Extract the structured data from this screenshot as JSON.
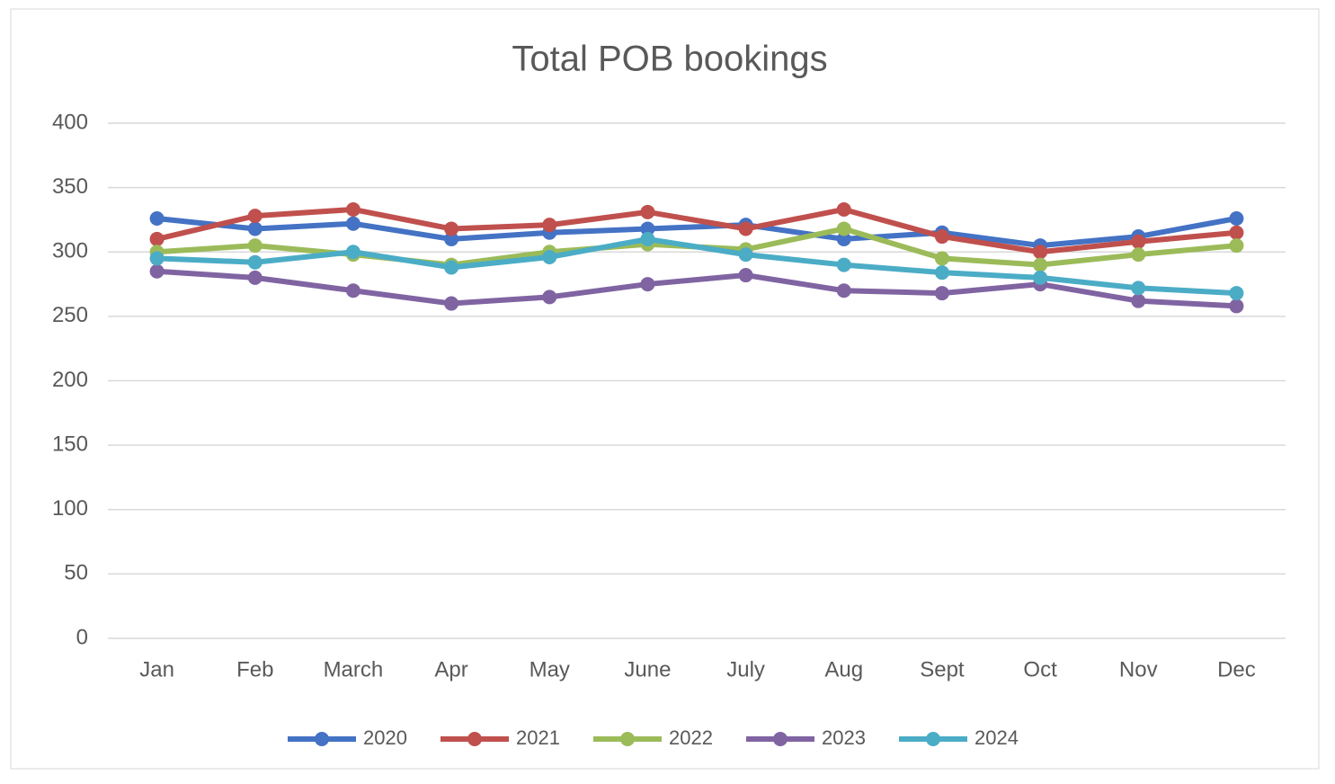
{
  "chart_data": {
    "type": "line",
    "title": "Total POB bookings",
    "categories": [
      "Jan",
      "Feb",
      "March",
      "Apr",
      "May",
      "June",
      "July",
      "Aug",
      "Sept",
      "Oct",
      "Nov",
      "Dec"
    ],
    "series": [
      {
        "name": "2020",
        "color": "#4472c4",
        "values": [
          326,
          318,
          322,
          310,
          315,
          318,
          321,
          310,
          315,
          305,
          312,
          326
        ]
      },
      {
        "name": "2021",
        "color": "#c0504d",
        "values": [
          310,
          328,
          333,
          318,
          321,
          331,
          318,
          333,
          312,
          300,
          308,
          315
        ]
      },
      {
        "name": "2022",
        "color": "#9bbb59",
        "values": [
          300,
          305,
          298,
          290,
          300,
          306,
          302,
          318,
          295,
          290,
          298,
          305
        ]
      },
      {
        "name": "2023",
        "color": "#8064a2",
        "values": [
          285,
          280,
          270,
          260,
          265,
          275,
          282,
          270,
          268,
          275,
          262,
          258
        ]
      },
      {
        "name": "2024",
        "color": "#4bacc6",
        "values": [
          295,
          292,
          300,
          288,
          296,
          310,
          298,
          290,
          284,
          280,
          272,
          268
        ]
      }
    ],
    "ylim": [
      0,
      400
    ],
    "yticks": [
      0,
      50,
      100,
      150,
      200,
      250,
      300,
      350,
      400
    ],
    "grid": true,
    "legend": "bottom"
  }
}
